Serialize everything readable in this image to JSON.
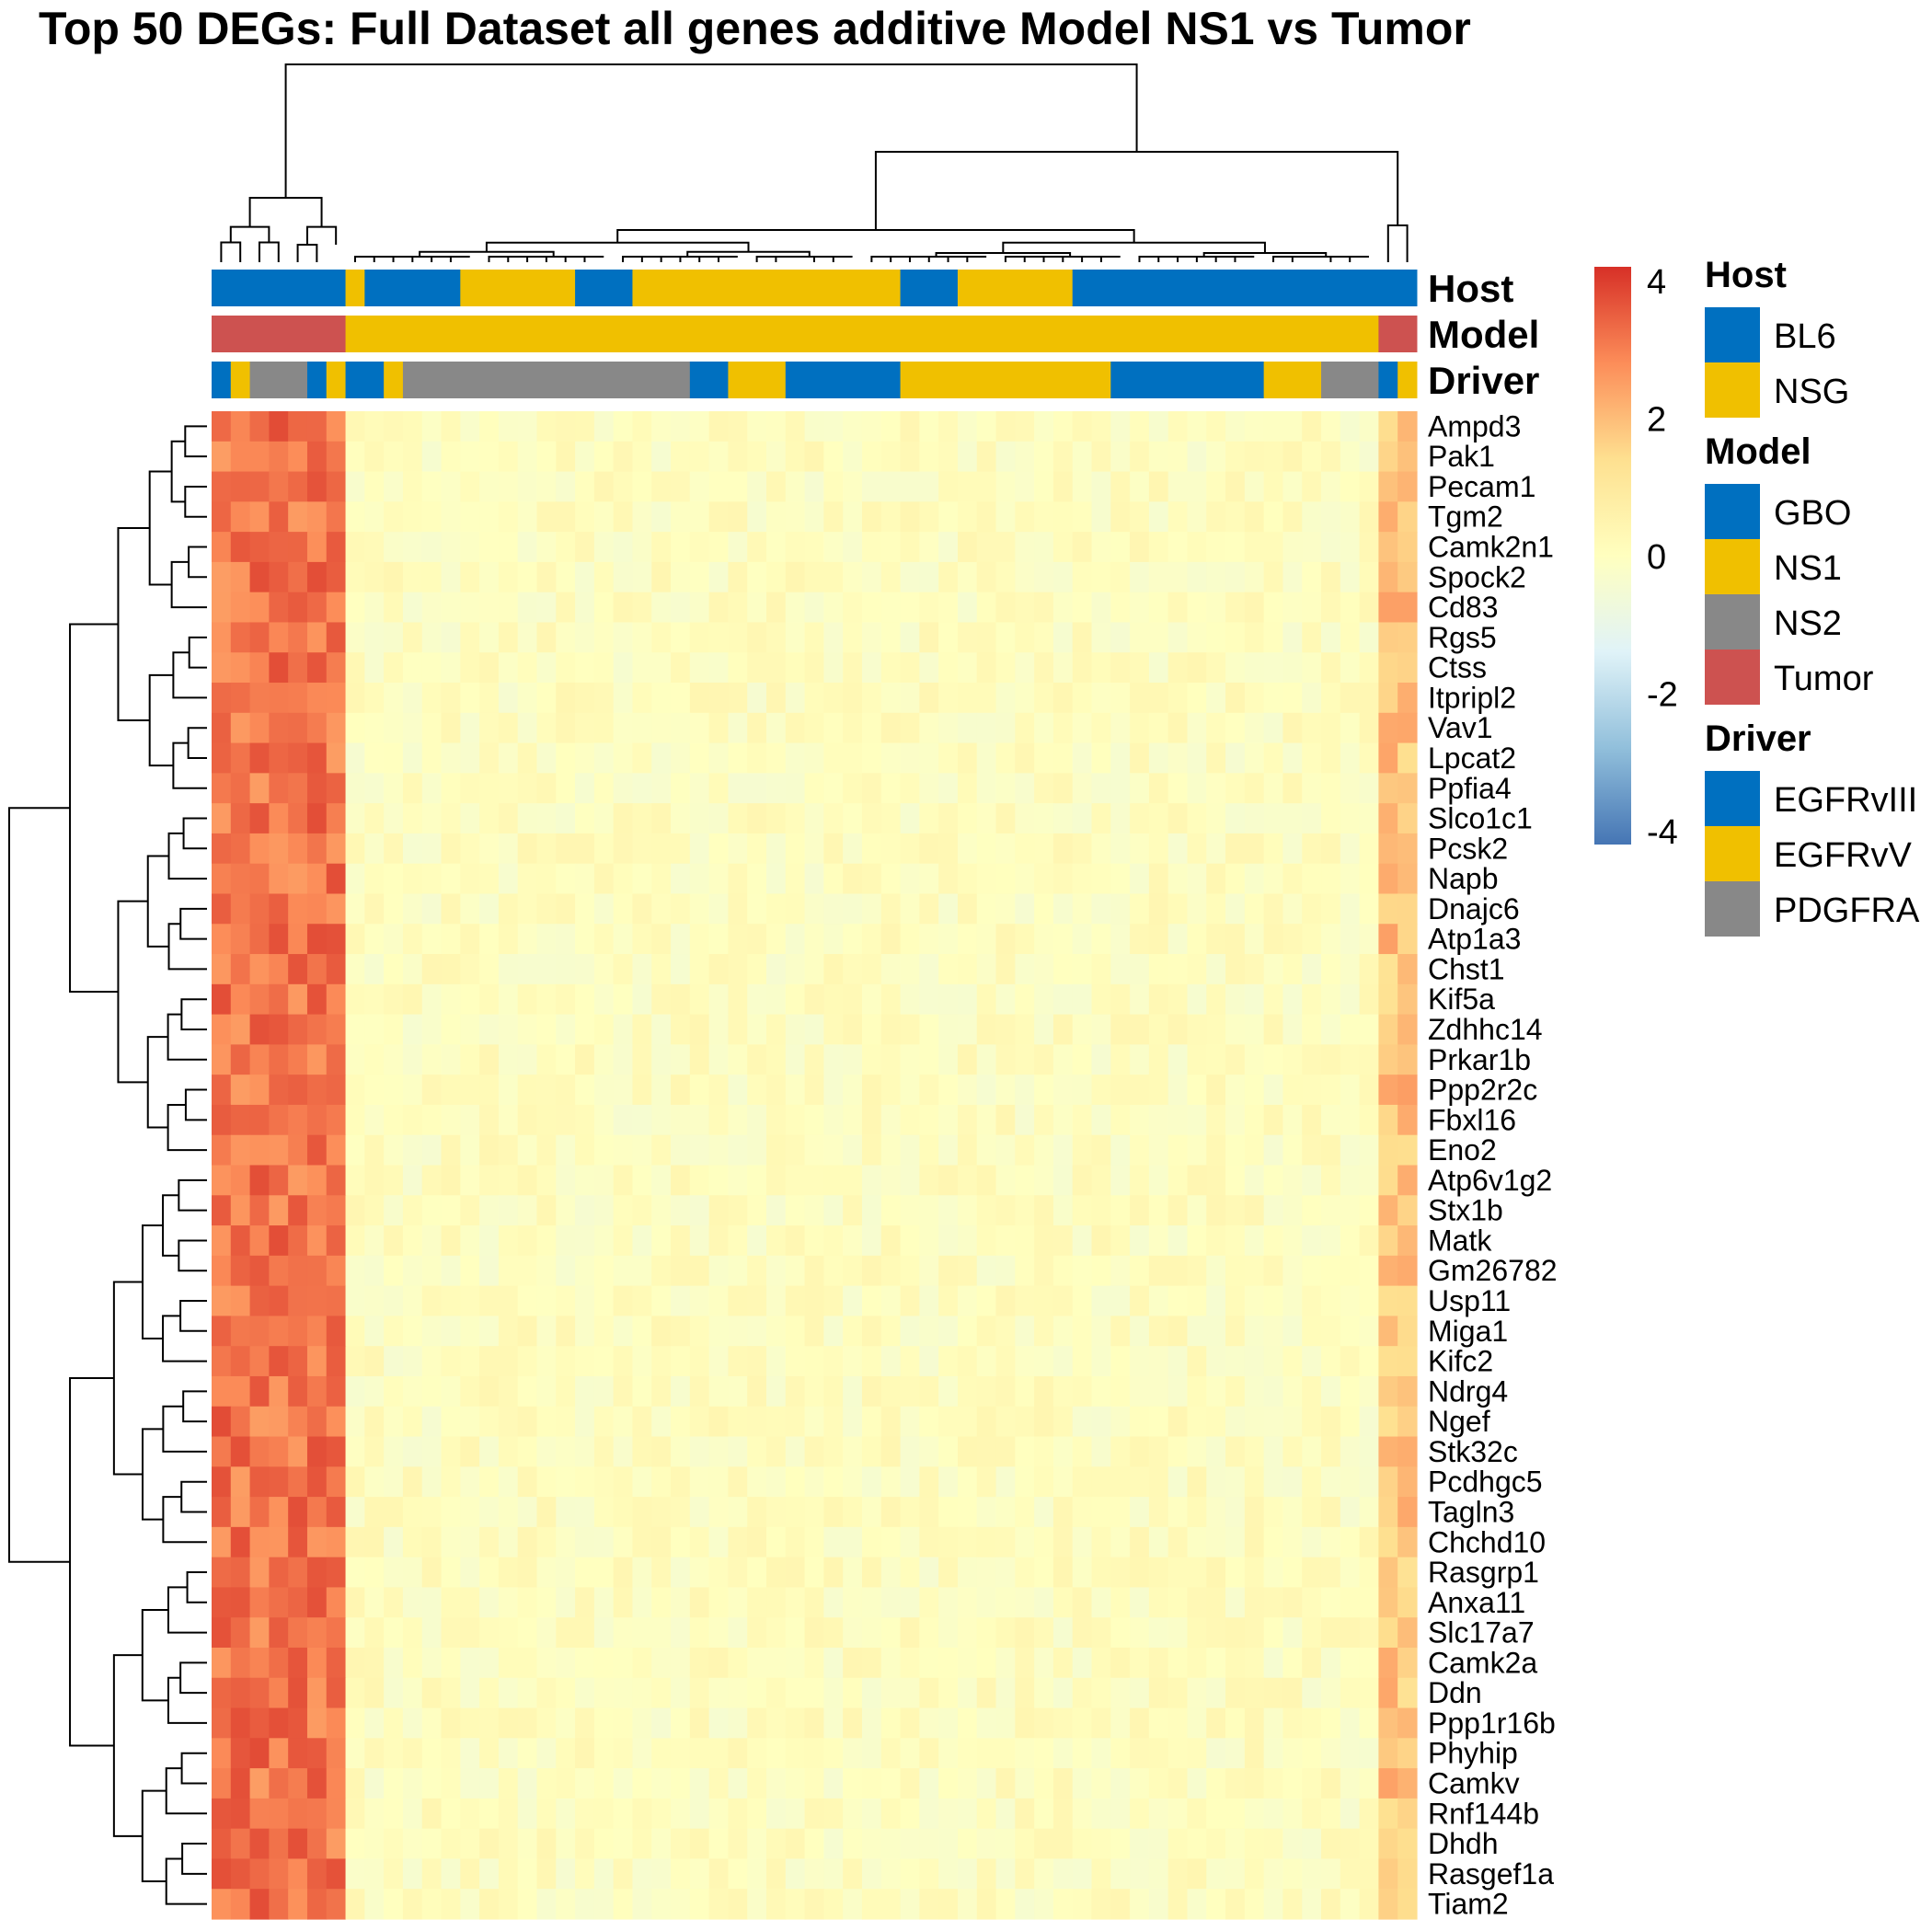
{
  "chart_data": {
    "type": "heatmap",
    "title": "Top 50 DEGs: Full Dataset all genes additive Model NS1 vs Tumor",
    "genes": [
      "Ampd3",
      "Pak1",
      "Pecam1",
      "Tgm2",
      "Camk2n1",
      "Spock2",
      "Cd83",
      "Rgs5",
      "Ctss",
      "Itpripl2",
      "Vav1",
      "Lpcat2",
      "Ppfia4",
      "Slco1c1",
      "Pcsk2",
      "Napb",
      "Dnajc6",
      "Atp1a3",
      "Chst1",
      "Kif5a",
      "Zdhhc14",
      "Prkar1b",
      "Ppp2r2c",
      "Fbxl16",
      "Eno2",
      "Atp6v1g2",
      "Stx1b",
      "Matk",
      "Gm26782",
      "Usp11",
      "Miga1",
      "Kifc2",
      "Ndrg4",
      "Ngef",
      "Stk32c",
      "Pcdhgc5",
      "Tagln3",
      "Chchd10",
      "Rasgrp1",
      "Anxa11",
      "Slc17a7",
      "Camk2a",
      "Ddn",
      "Ppp1r16b",
      "Phyhip",
      "Camkv",
      "Rnf144b",
      "Dhdh",
      "Rasgef1a",
      "Tiam2"
    ],
    "n_samples": 63,
    "color_scale": {
      "min": -4,
      "max": 4,
      "ticks": [
        4,
        2,
        0,
        -2,
        -4
      ],
      "colors": [
        "#4575b4",
        "#91bfdb",
        "#e0f3f8",
        "#ffffbf",
        "#fee090",
        "#fc8d59",
        "#d73027"
      ]
    },
    "column_groups": [
      {
        "name": "Tumor",
        "count": 7,
        "level": 3.0
      },
      {
        "name": "NS1",
        "count": 54,
        "level": 0.0
      },
      {
        "name": "Tumor",
        "count": 2,
        "level": 1.8
      }
    ],
    "annotations": [
      {
        "name": "Host",
        "segments": [
          {
            "value": "BL6",
            "count": 7
          },
          {
            "value": "NSG",
            "count": 1
          },
          {
            "value": "BL6",
            "count": 5
          },
          {
            "value": "NSG",
            "count": 6
          },
          {
            "value": "BL6",
            "count": 3
          },
          {
            "value": "NSG",
            "count": 14
          },
          {
            "value": "BL6",
            "count": 3
          },
          {
            "value": "NSG",
            "count": 6
          },
          {
            "value": "BL6",
            "count": 18
          }
        ]
      },
      {
        "name": "Model",
        "segments": [
          {
            "value": "Tumor",
            "count": 7
          },
          {
            "value": "NS1",
            "count": 54
          },
          {
            "value": "Tumor",
            "count": 2
          }
        ]
      },
      {
        "name": "Driver",
        "segments": [
          {
            "value": "EGFRvIII",
            "count": 1
          },
          {
            "value": "EGFRvV",
            "count": 1
          },
          {
            "value": "PDGFRA",
            "count": 3
          },
          {
            "value": "EGFRvIII",
            "count": 1
          },
          {
            "value": "EGFRvV",
            "count": 1
          },
          {
            "value": "EGFRvIII",
            "count": 2
          },
          {
            "value": "EGFRvV",
            "count": 1
          },
          {
            "value": "PDGFRA",
            "count": 15
          },
          {
            "value": "EGFRvIII",
            "count": 2
          },
          {
            "value": "EGFRvV",
            "count": 3
          },
          {
            "value": "EGFRvIII",
            "count": 6
          },
          {
            "value": "EGFRvV",
            "count": 11
          },
          {
            "value": "EGFRvIII",
            "count": 8
          },
          {
            "value": "EGFRvV",
            "count": 3
          },
          {
            "value": "PDGFRA",
            "count": 3
          },
          {
            "value": "EGFRvIII",
            "count": 1
          },
          {
            "value": "EGFRvV",
            "count": 1
          }
        ]
      }
    ]
  },
  "legend": [
    {
      "title": "Host",
      "items": [
        {
          "label": "BL6",
          "color": "#0070c0"
        },
        {
          "label": "NSG",
          "color": "#f0c000"
        }
      ]
    },
    {
      "title": "Model",
      "items": [
        {
          "label": "GBO",
          "color": "#0070c0"
        },
        {
          "label": "NS1",
          "color": "#f0c000"
        },
        {
          "label": "NS2",
          "color": "#888888"
        },
        {
          "label": "Tumor",
          "color": "#cd5250"
        }
      ]
    },
    {
      "title": "Driver",
      "items": [
        {
          "label": "EGFRvIII",
          "color": "#0070c0"
        },
        {
          "label": "EGFRvV",
          "color": "#f0c000"
        },
        {
          "label": "PDGFRA",
          "color": "#888888"
        }
      ]
    }
  ]
}
